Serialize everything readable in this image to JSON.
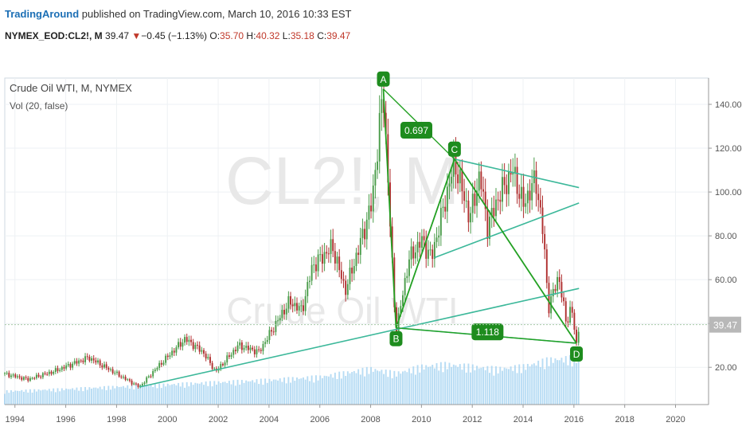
{
  "header": {
    "author": "TradingAround",
    "published_text": "published on TradingView.com, March 10, 2016 10:33 EST",
    "symbol": "NYMEX_EOD:CL2!, M",
    "last": "39.47",
    "change_arrow": "▼",
    "change": "−0.45 (−1.13%)",
    "open_label": "O:",
    "open": "35.70",
    "high_label": "H:",
    "high": "40.32",
    "low_label": "L:",
    "low": "35.18",
    "close_label": "C:",
    "close": "39.47"
  },
  "legend": {
    "main": "Crude Oil WTI, M, NYMEX",
    "volume": "Vol (20, false)"
  },
  "watermark": {
    "symbol": "CL2!, M",
    "name": "Crude Oil WTI"
  },
  "colors": {
    "up": "#4a9c4a",
    "down": "#b03030",
    "pattern": "#22a022",
    "trend": "#3cb89a",
    "volume": "#9fd0f0",
    "price_tag": "#b8b8b8"
  },
  "chart_data": {
    "type": "candlestick",
    "x_ticks": [
      "1994",
      "1996",
      "1998",
      "2000",
      "2002",
      "2004",
      "2006",
      "2008",
      "2010",
      "2012",
      "2014",
      "2016",
      "2018",
      "2020"
    ],
    "y_ticks": [
      "20.00",
      "40.00",
      "60.00",
      "80.00",
      "100.00",
      "120.00",
      "140.00"
    ],
    "y_tick_values": [
      20,
      40,
      60,
      80,
      100,
      120,
      140
    ],
    "ylim": [
      3,
      152
    ],
    "xlim": [
      1993.6,
      2021.3
    ],
    "last_price_label": "39.47",
    "last_price": 39.47,
    "price_path": [
      [
        1993.6,
        17
      ],
      [
        1994.5,
        14.5
      ],
      [
        1995.5,
        18
      ],
      [
        1996.9,
        24.5
      ],
      [
        1998.9,
        11
      ],
      [
        1999.6,
        20
      ],
      [
        2000.7,
        33
      ],
      [
        2001.4,
        27
      ],
      [
        2001.9,
        18
      ],
      [
        2002.8,
        30
      ],
      [
        2003.6,
        27
      ],
      [
        2004.8,
        50
      ],
      [
        2005.3,
        46
      ],
      [
        2005.7,
        66
      ],
      [
        2006.5,
        75
      ],
      [
        2007.0,
        55
      ],
      [
        2007.5,
        73
      ],
      [
        2008.05,
        95
      ],
      [
        2008.5,
        147
      ],
      [
        2008.9,
        55
      ],
      [
        2009.0,
        36
      ],
      [
        2009.5,
        69
      ],
      [
        2010.0,
        78
      ],
      [
        2010.4,
        70
      ],
      [
        2011.3,
        114
      ],
      [
        2011.9,
        88
      ],
      [
        2012.3,
        108
      ],
      [
        2012.6,
        84
      ],
      [
        2013.0,
        97
      ],
      [
        2013.6,
        110
      ],
      [
        2014.0,
        94
      ],
      [
        2014.5,
        106
      ],
      [
        2014.8,
        80
      ],
      [
        2015.0,
        47
      ],
      [
        2015.4,
        62
      ],
      [
        2015.7,
        40
      ],
      [
        2015.9,
        48
      ],
      [
        2016.1,
        30
      ],
      [
        2016.2,
        39.47
      ]
    ],
    "volume_path": [
      [
        1993.6,
        0.3
      ],
      [
        1996,
        0.35
      ],
      [
        1998,
        0.4
      ],
      [
        2000,
        0.45
      ],
      [
        2002,
        0.5
      ],
      [
        2004,
        0.55
      ],
      [
        2006,
        0.62
      ],
      [
        2008,
        0.8
      ],
      [
        2009,
        0.7
      ],
      [
        2010,
        0.85
      ],
      [
        2011,
        0.9
      ],
      [
        2012,
        0.85
      ],
      [
        2013,
        0.8
      ],
      [
        2014,
        0.85
      ],
      [
        2015,
        1.0
      ],
      [
        2016.2,
        1.05
      ]
    ],
    "pattern": {
      "points": [
        {
          "label": "A",
          "x": 2008.5,
          "y": 147
        },
        {
          "label": "B",
          "x": 2009.0,
          "y": 38
        },
        {
          "label": "C",
          "x": 2011.3,
          "y": 115
        },
        {
          "label": "D",
          "x": 2016.1,
          "y": 31
        }
      ],
      "ratio_labels": [
        {
          "text": "0.697",
          "x": 2009.8,
          "y": 128
        },
        {
          "text": "1.118",
          "x": 2012.6,
          "y": 36
        }
      ]
    },
    "trendlines": [
      {
        "x1": 1998.9,
        "y1": 11,
        "x2": 2016.2,
        "y2": 56
      },
      {
        "x1": 2009.0,
        "y1": 38,
        "x2": 2016.1,
        "y2": 31
      },
      {
        "x1": 2011.3,
        "y1": 115,
        "x2": 2016.2,
        "y2": 102
      },
      {
        "x1": 2010.5,
        "y1": 70,
        "x2": 2016.2,
        "y2": 95
      }
    ]
  }
}
